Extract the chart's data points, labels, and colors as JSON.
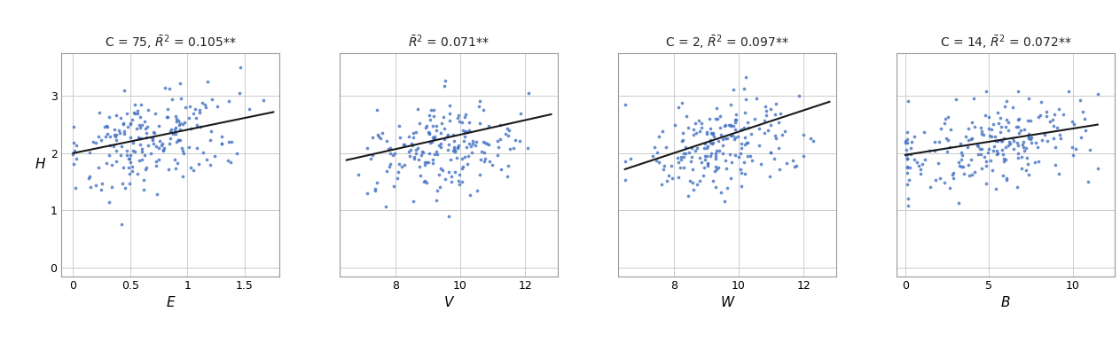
{
  "panels": [
    {
      "title": "C = 75, $\\bar{R}^2$ = 0.105**",
      "title_parts": [
        "C = 75, ",
        "R",
        "2",
        " = 0.105",
        "**"
      ],
      "xlabel": "E",
      "xlim": [
        -0.1,
        1.8
      ],
      "xticks": [
        0,
        0.5,
        1,
        1.5
      ],
      "xticklabels": [
        "0",
        "0.5",
        "1",
        "1.5"
      ],
      "reg_x0": 0.0,
      "reg_x1": 1.75,
      "reg_y0": 2.0,
      "reg_y1": 2.72,
      "seed": 42
    },
    {
      "title": "$\\bar{R}^2$ = 0.071**",
      "title_parts": [
        "",
        "R",
        "2",
        " = 0.071",
        "**"
      ],
      "xlabel": "V",
      "xlim": [
        6.3,
        13.0
      ],
      "xticks": [
        8,
        10,
        12
      ],
      "xticklabels": [
        "8",
        "10",
        "12"
      ],
      "reg_x0": 6.5,
      "reg_x1": 12.8,
      "reg_y0": 1.88,
      "reg_y1": 2.68,
      "seed": 7
    },
    {
      "title": "C = 2, $\\bar{R}^2$ = 0.097**",
      "title_parts": [
        "C = 2, ",
        "R",
        "2",
        " = 0.097",
        "**"
      ],
      "xlabel": "W",
      "xlim": [
        6.3,
        13.0
      ],
      "xticks": [
        8,
        10,
        12
      ],
      "xticklabels": [
        "8",
        "10",
        "12"
      ],
      "reg_x0": 6.5,
      "reg_x1": 12.8,
      "reg_y0": 1.72,
      "reg_y1": 2.9,
      "seed": 15
    },
    {
      "title": "C = 14, $\\bar{R}^2$ = 0.072**",
      "title_parts": [
        "C = 14, ",
        "R",
        "2",
        " = 0.072",
        "**"
      ],
      "xlabel": "B",
      "xlim": [
        -0.5,
        12.5
      ],
      "xticks": [
        0,
        5,
        10
      ],
      "xticklabels": [
        "0",
        "5",
        "10"
      ],
      "reg_x0": 0.0,
      "reg_x1": 11.5,
      "reg_y0": 1.97,
      "reg_y1": 2.5,
      "seed": 23
    }
  ],
  "ylim": [
    -0.15,
    3.75
  ],
  "yticks": [
    0,
    1,
    2,
    3
  ],
  "yticklabels": [
    "0",
    "1",
    "2",
    "3"
  ],
  "ylabel": "H",
  "dot_color": "#4472C4",
  "line_color": "#1a1a1a",
  "grid_color": "#cccccc",
  "background_color": "#ffffff",
  "n_points": 200,
  "figsize": [
    12.63,
    3.87
  ],
  "dpi": 100
}
